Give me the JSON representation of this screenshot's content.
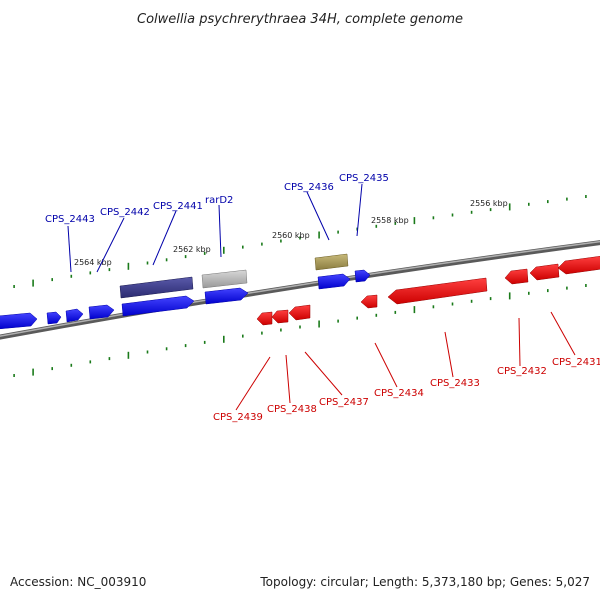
{
  "title": "Colwellia psychrerythraea 34H, complete genome",
  "footer": {
    "accession": "Accession: NC_003910",
    "summary": "Topology: circular; Length: 5,373,180 bp; Genes: 5,027"
  },
  "colors": {
    "forward_gene": "#0000ee",
    "reverse_gene": "#ee0000",
    "purple_gene": "#3a3a8a",
    "gray_gene": "#b0b0b0",
    "olive_gene": "#a89a5a",
    "backbone": "#808080",
    "tick": "#1a7a1a",
    "label_blue": "#0000aa",
    "label_red": "#cc0000"
  },
  "scale_labels": [
    "2564 kbp",
    "2562 kbp",
    "2560 kbp",
    "2558 kbp",
    "2556 kbp"
  ],
  "top_labels": [
    "CPS_2443",
    "CPS_2442",
    "CPS_2441",
    "rarD2",
    "CPS_2436",
    "CPS_2435"
  ],
  "bottom_labels": [
    "CPS_2439",
    "CPS_2438",
    "CPS_2437",
    "CPS_2434",
    "CPS_2433",
    "CPS_2432",
    "CPS_2431"
  ]
}
